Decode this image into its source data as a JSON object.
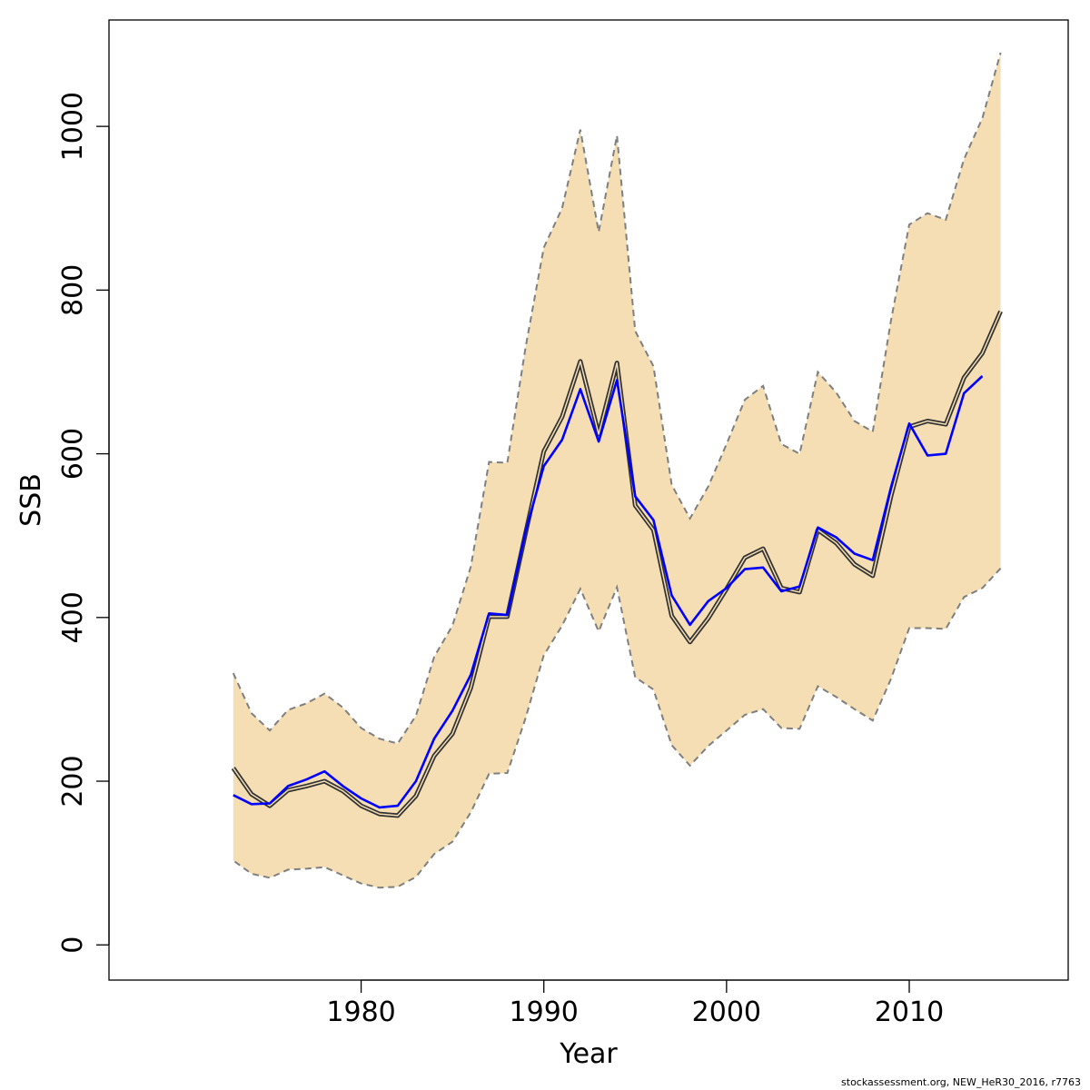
{
  "colors": {
    "ci_fill": "#f5deb3",
    "ci_border": "#7f7f7f",
    "estimate_line": "#333333",
    "retro_line": "#0000ff",
    "axis": "#000000"
  },
  "footer": "stockassessment.org, NEW_HeR30_2016, r7763",
  "chart_data": {
    "type": "line",
    "title": "",
    "xlabel": "Year",
    "ylabel": "SSB",
    "xlim": [
      1966.2,
      2018.7
    ],
    "ylim": [
      -43,
      1130
    ],
    "xticks": [
      1980,
      1990,
      2000,
      2010
    ],
    "yticks": [
      0,
      200,
      400,
      600,
      800,
      1000
    ],
    "grid": false,
    "band": {
      "x": [
        1973,
        1974,
        1975,
        1976,
        1977,
        1978,
        1979,
        1980,
        1981,
        1982,
        1983,
        1984,
        1985,
        1986,
        1987,
        1988,
        1989,
        1990,
        1991,
        1992,
        1993,
        1994,
        1995,
        1996,
        1997,
        1998,
        1999,
        2000,
        2001,
        2002,
        2003,
        2004,
        2005,
        2006,
        2007,
        2008,
        2009,
        2010,
        2011,
        2012,
        2013,
        2014,
        2015
      ],
      "upper": [
        332,
        283,
        262,
        287,
        295,
        307,
        290,
        265,
        252,
        246,
        280,
        352,
        390,
        462,
        590,
        589,
        730,
        852,
        900,
        996,
        871,
        989,
        750,
        707,
        562,
        521,
        560,
        612,
        666,
        683,
        612,
        600,
        700,
        675,
        640,
        627,
        763,
        880,
        894,
        886,
        960,
        1010,
        1090
      ],
      "lower": [
        103,
        87,
        82,
        92,
        93,
        95,
        85,
        75,
        70,
        71,
        83,
        111,
        126,
        162,
        209,
        210,
        277,
        354,
        390,
        435,
        383,
        437,
        327,
        312,
        244,
        219,
        243,
        262,
        281,
        288,
        265,
        264,
        316,
        303,
        288,
        274,
        325,
        387,
        387,
        386,
        425,
        436,
        460
      ]
    },
    "series": [
      {
        "style": "estimate",
        "x": [
          1973,
          1974,
          1975,
          1976,
          1977,
          1978,
          1979,
          1980,
          1981,
          1982,
          1983,
          1984,
          1985,
          1986,
          1987,
          1988,
          1989,
          1990,
          1991,
          1992,
          1993,
          1994,
          1995,
          1996,
          1997,
          1998,
          1999,
          2000,
          2001,
          2002,
          2003,
          2004,
          2005,
          2006,
          2007,
          2008,
          2009,
          2010,
          2011,
          2012,
          2013,
          2014,
          2015
        ],
        "values": [
          216,
          184,
          170,
          189,
          194,
          200,
          188,
          170,
          160,
          158,
          182,
          231,
          258,
          314,
          401,
          401,
          503,
          603,
          645,
          713,
          624,
          711,
          537,
          507,
          402,
          370,
          399,
          435,
          473,
          484,
          436,
          431,
          507,
          491,
          465,
          451,
          548,
          633,
          640,
          636,
          693,
          723,
          774
        ]
      },
      {
        "style": "retro",
        "x": [
          1973,
          1974,
          1975,
          1976,
          1977,
          1978,
          1979,
          1980,
          1981,
          1982,
          1983,
          1984,
          1985,
          1986,
          1987,
          1988,
          1989,
          1990,
          1991,
          1992,
          1993,
          1994,
          1995,
          1996,
          1997,
          1998,
          1999,
          2000,
          2001,
          2002,
          2003,
          2004,
          2005,
          2006,
          2007,
          2008,
          2009,
          2010,
          2011,
          2012,
          2013,
          2014
        ],
        "values": [
          183,
          172,
          173,
          194,
          202,
          212,
          194,
          179,
          168,
          170,
          200,
          252,
          286,
          330,
          405,
          403,
          505,
          585,
          617,
          679,
          615,
          690,
          548,
          519,
          427,
          391,
          420,
          436,
          459,
          461,
          432,
          438,
          510,
          498,
          478,
          470,
          559,
          637,
          598,
          600,
          674,
          695
        ]
      }
    ]
  }
}
